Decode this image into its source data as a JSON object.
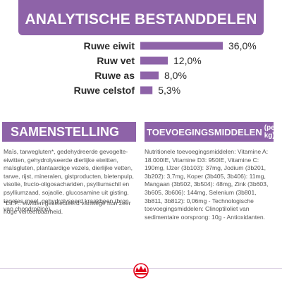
{
  "banner": {
    "title": "ANALYTISCHE BESTANDDELEN"
  },
  "chart_data": {
    "type": "bar",
    "orientation": "horizontal",
    "categories": [
      "Ruwe eiwit",
      "Ruw vet",
      "Ruwe as",
      "Ruwe celstof"
    ],
    "values": [
      36.0,
      12.0,
      8.0,
      5.3
    ],
    "value_labels": [
      "36,0%",
      "12,0%",
      "8,0%",
      "5,3%"
    ],
    "unit": "%",
    "bar_color": "#8e63a8",
    "title": "ANALYTISCHE BESTANDDELEN"
  },
  "samenstelling": {
    "header": "SAMENSTELLING",
    "text": "Maïs, tarwegluten*, gedehydreerde gevogelte-eiwitten, gehydrolyseerde dierlijke eiwitten, maïsgluten, plantaardige vezels, dierlijke vetten, tarwe, rijst, mineralen, gistproducten, bietenpulp, visolie, fructo-oligosachariden, psylliumschil en psylliumzaad, sojaolie, glucosamine uit gisting, tagetes meel, gehydrolyseerd kraakbeen (bron van chondroïtine).",
    "note": "*L.I.P.: eiwitten geselecteerd vanwege hun zeer hoge verteerbaarheid."
  },
  "toevoeging": {
    "header_main": "TOEVOEGINGSMIDDELEN",
    "header_suffix": "(per kg)",
    "text": "Nutritionele toevoegingsmiddelen: Vitamine A: 18.000IE, Vitamine D3: 950IE, Vitamine C: 190mg, IJzer (3b103): 37mg, Jodium (3b201, 3b202): 3,7mg, Koper (3b405, 3b406): 11mg, Mangaan (3b502, 3b504): 48mg, Zink (3b603, 3b605, 3b606): 144mg, Selenium (3b801, 3b811, 3b812): 0,06mg - Technologische toevoegingsmiddelen: Clinoptiloliet van sedimentaire oorsprong: 10g - Antioxidanten."
  },
  "colors": {
    "accent": "#8e63a8",
    "brand_red": "#e2001a"
  },
  "footer": {
    "logo_icon": "royal-canin-crown-icon"
  }
}
